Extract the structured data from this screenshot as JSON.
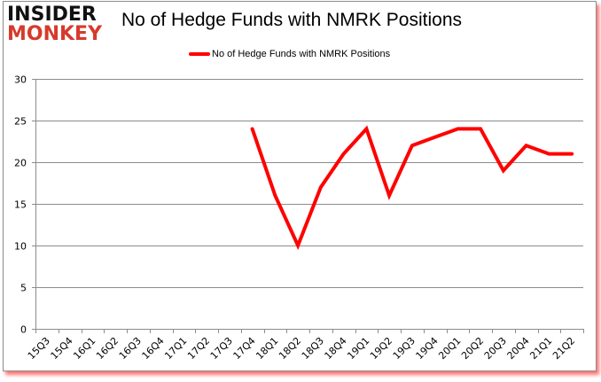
{
  "header": {
    "logo_line1": "INSIDER",
    "logo_line2": "MONKEY",
    "title": "No of Hedge Funds with NMRK Positions"
  },
  "legend": {
    "label": "No of Hedge Funds with NMRK Positions",
    "color": "#ff0000"
  },
  "colors": {
    "line": "#ff0000",
    "grid": "#8c8c8c",
    "logo_dark": "#111111",
    "logo_red": "#d63a2b"
  },
  "chart_data": {
    "type": "line",
    "title": "No of Hedge Funds with NMRK Positions",
    "xlabel": "",
    "ylabel": "",
    "ylim": [
      0,
      30
    ],
    "yticks": [
      0,
      5,
      10,
      15,
      20,
      25,
      30
    ],
    "grid": true,
    "legend_position": "top",
    "categories": [
      "15Q3",
      "15Q4",
      "16Q1",
      "16Q2",
      "16Q3",
      "16Q4",
      "17Q1",
      "17Q2",
      "17Q3",
      "17Q4",
      "18Q1",
      "18Q2",
      "18Q3",
      "18Q4",
      "19Q1",
      "19Q2",
      "19Q3",
      "19Q4",
      "20Q1",
      "20Q2",
      "20Q3",
      "20Q4",
      "21Q1",
      "21Q2"
    ],
    "series": [
      {
        "name": "No of Hedge Funds with NMRK Positions",
        "color": "#ff0000",
        "values": [
          null,
          null,
          null,
          null,
          null,
          null,
          null,
          null,
          null,
          24,
          16,
          10,
          17,
          21,
          24,
          16,
          22,
          23,
          24,
          24,
          19,
          22,
          21,
          21
        ]
      }
    ]
  }
}
